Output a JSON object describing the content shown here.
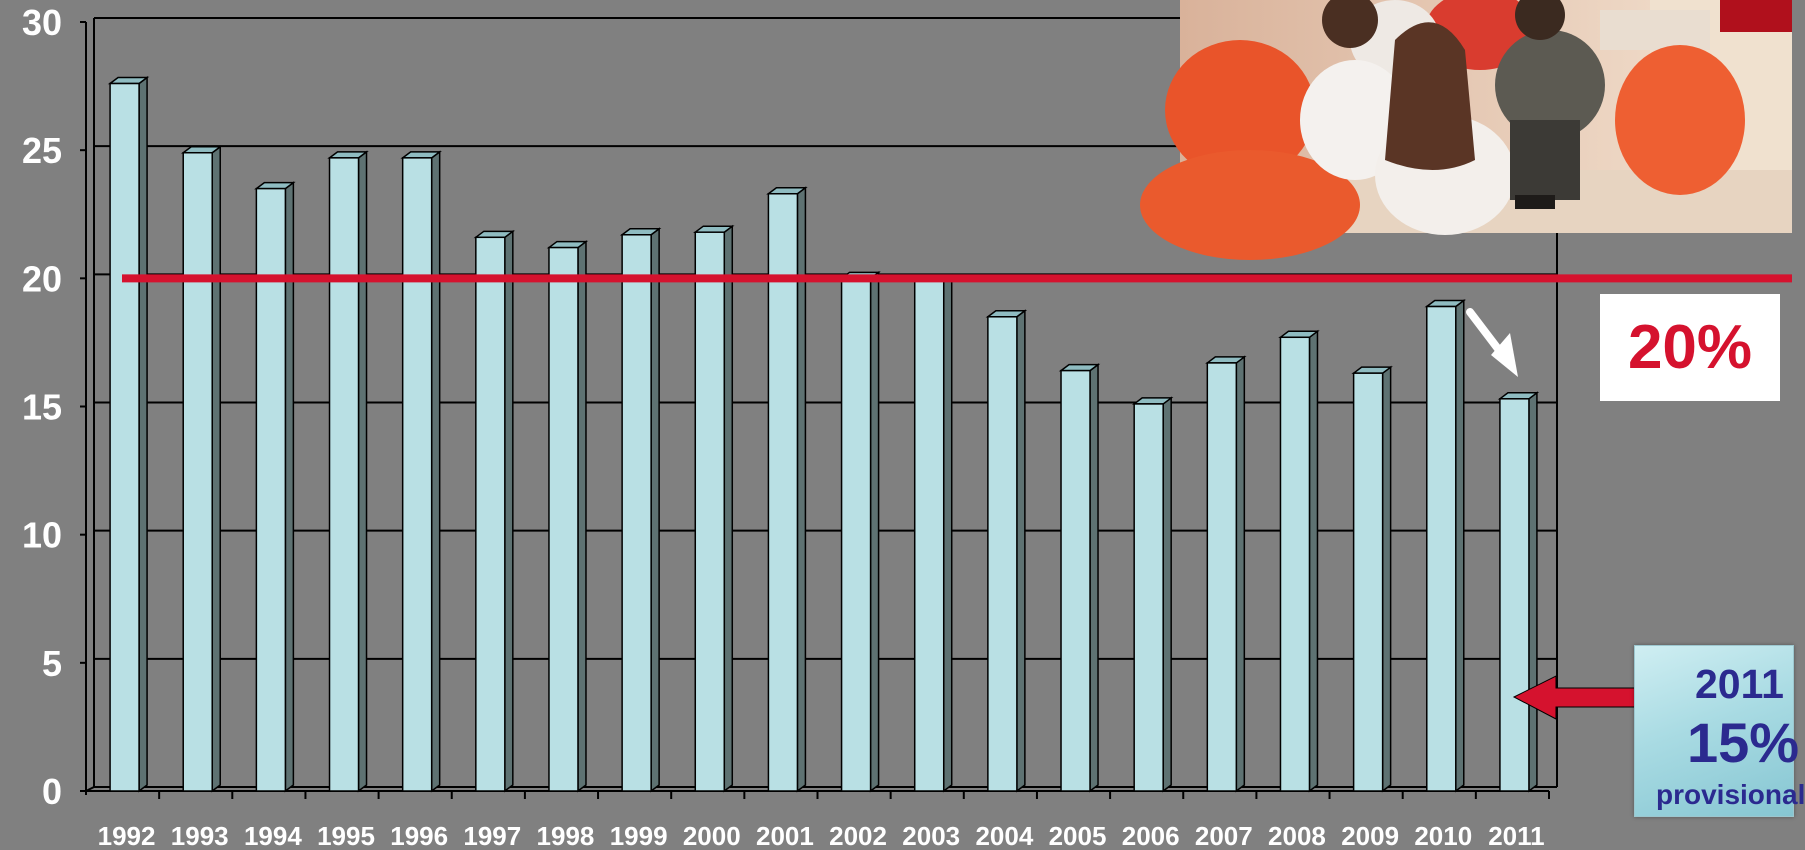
{
  "chart_data": {
    "type": "bar",
    "categories": [
      "1992",
      "1993",
      "1994",
      "1995",
      "1996",
      "1997",
      "1998",
      "1999",
      "2000",
      "2001",
      "2002",
      "2003",
      "2004",
      "2005",
      "2006",
      "2007",
      "2008",
      "2009",
      "2010",
      "2011"
    ],
    "values": [
      27.6,
      24.9,
      23.5,
      24.7,
      24.7,
      21.6,
      21.2,
      21.7,
      21.8,
      23.3,
      20.0,
      19.9,
      18.5,
      16.4,
      15.1,
      16.7,
      17.7,
      16.3,
      18.9,
      15.3
    ],
    "ylim": [
      0,
      30
    ],
    "yticks": [
      "0",
      "5",
      "10",
      "15",
      "20",
      "25",
      "30"
    ],
    "grid": true,
    "reference_line": {
      "value": 20,
      "color": "#d5122e"
    },
    "colors": {
      "background": "#808080",
      "bar_front": "#b9e0e4",
      "bar_side": "#5e7272",
      "bar_top": "#8fbcc1",
      "accent": "#d5122e",
      "callout_text": "#2b2a8f"
    }
  },
  "annotations": {
    "threshold_label": "20%",
    "callout": {
      "year": "2011",
      "percent": "15%",
      "note": "provisional"
    }
  },
  "photo": {
    "icon": "group-discussion-photo"
  }
}
